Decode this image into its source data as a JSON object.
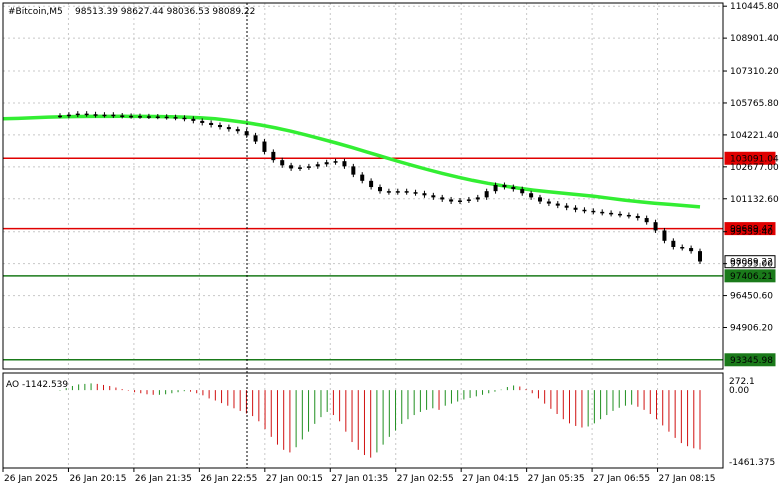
{
  "header": {
    "symbol": "#Bitcoin,M5",
    "ohlc": "98513.39 98627.44 98036.53 98089.22"
  },
  "indicator": {
    "name": "AO -1142.539",
    "scale_top": "272.1",
    "scale_zero": "0.00",
    "scale_bottom": "-1461.375"
  },
  "colors": {
    "background": "#ffffff",
    "grid": "#c8c8c8",
    "candle": "#000000",
    "ma_line": "#33ee33",
    "resistance": "#e00000",
    "support": "#1a7a1a",
    "ao_up": "#1f8f1f",
    "ao_down": "#d01010"
  },
  "chart_data": {
    "type": "candlestick",
    "title": "#Bitcoin,M5",
    "ylim": [
      92900,
      110600
    ],
    "y_ticks": [
      "110445.80",
      "108901.40",
      "107310.20",
      "105765.80",
      "104221.40",
      "102677.00",
      "101132.60",
      "99539.40",
      "97995.00",
      "96450.60",
      "94906.20"
    ],
    "x_ticks": [
      "26 Jan 2025",
      "26 Jan 20:15",
      "26 Jan 21:35",
      "26 Jan 22:55",
      "27 Jan 00:15",
      "27 Jan 01:35",
      "27 Jan 02:55",
      "27 Jan 04:15",
      "27 Jan 05:35",
      "27 Jan 06:55",
      "27 Jan 08:15"
    ],
    "levels": [
      {
        "label": "103091.04",
        "value": 103091.04,
        "kind": "resistance"
      },
      {
        "label": "99689.47",
        "value": 99689.47,
        "kind": "resistance"
      },
      {
        "label": "98089.22",
        "value": 98089.22,
        "kind": "current"
      },
      {
        "label": "97406.21",
        "value": 97406.21,
        "kind": "support"
      },
      {
        "label": "93345.98",
        "value": 93345.98,
        "kind": "support"
      }
    ],
    "price": [
      105150,
      105200,
      105250,
      105220,
      105180,
      105200,
      105160,
      105140,
      105130,
      105120,
      105110,
      105100,
      105080,
      105050,
      105000,
      104900,
      104800,
      104700,
      104600,
      104500,
      104400,
      104200,
      103900,
      103400,
      103000,
      102750,
      102600,
      102650,
      102700,
      102800,
      102900,
      102950,
      102700,
      102300,
      102000,
      101700,
      101500,
      101450,
      101500,
      101450,
      101400,
      101300,
      101200,
      101100,
      101000,
      101050,
      101100,
      101200,
      101500,
      101800,
      101700,
      101600,
      101400,
      101200,
      101000,
      100900,
      100800,
      100700,
      100600,
      100550,
      100500,
      100450,
      100400,
      100350,
      100300,
      100200,
      100000,
      99600,
      99100,
      98800,
      98750,
      98600,
      98100
    ],
    "ma": [
      105000,
      105020,
      105050,
      105080,
      105100,
      105110,
      105115,
      105118,
      105120,
      105115,
      105110,
      105100,
      105080,
      105050,
      105000,
      104920,
      104820,
      104700,
      104560,
      104400,
      104220,
      104030,
      103830,
      103620,
      103400,
      103180,
      102960,
      102750,
      102550,
      102360,
      102180,
      102020,
      101880,
      101760,
      101650,
      101550,
      101470,
      101400,
      101330,
      101250,
      101160,
      101070,
      100990,
      100920,
      100860,
      100800,
      100740
    ],
    "ao": [
      -10,
      40,
      80,
      110,
      120,
      130,
      120,
      100,
      80,
      50,
      20,
      -10,
      -40,
      -60,
      -80,
      -90,
      -90,
      -80,
      -60,
      -40,
      -20,
      -30,
      -60,
      -100,
      -160,
      -200,
      -250,
      -300,
      -350,
      -400,
      -450,
      -500,
      -600,
      -750,
      -900,
      -1050,
      -1150,
      -1200,
      -1100,
      -950,
      -800,
      -650,
      -520,
      -420,
      -480,
      -600,
      -800,
      -1000,
      -1150,
      -1250,
      -1300,
      -1200,
      -1050,
      -900,
      -780,
      -650,
      -560,
      -480,
      -420,
      -380,
      -350,
      -380,
      -300,
      -260,
      -220,
      -180,
      -150,
      -120,
      -90,
      -60,
      -30,
      10,
      60,
      90,
      70,
      20,
      -60,
      -160,
      -260,
      -360,
      -460,
      -560,
      -640,
      -690,
      -720,
      -700,
      -640,
      -560,
      -480,
      -400,
      -340,
      -300,
      -280,
      -320,
      -380,
      -460,
      -560,
      -680,
      -800,
      -920,
      -1020,
      -1080,
      -1120,
      -1142.539
    ],
    "ao_ylim": [
      -1461.375,
      272.1
    ]
  }
}
